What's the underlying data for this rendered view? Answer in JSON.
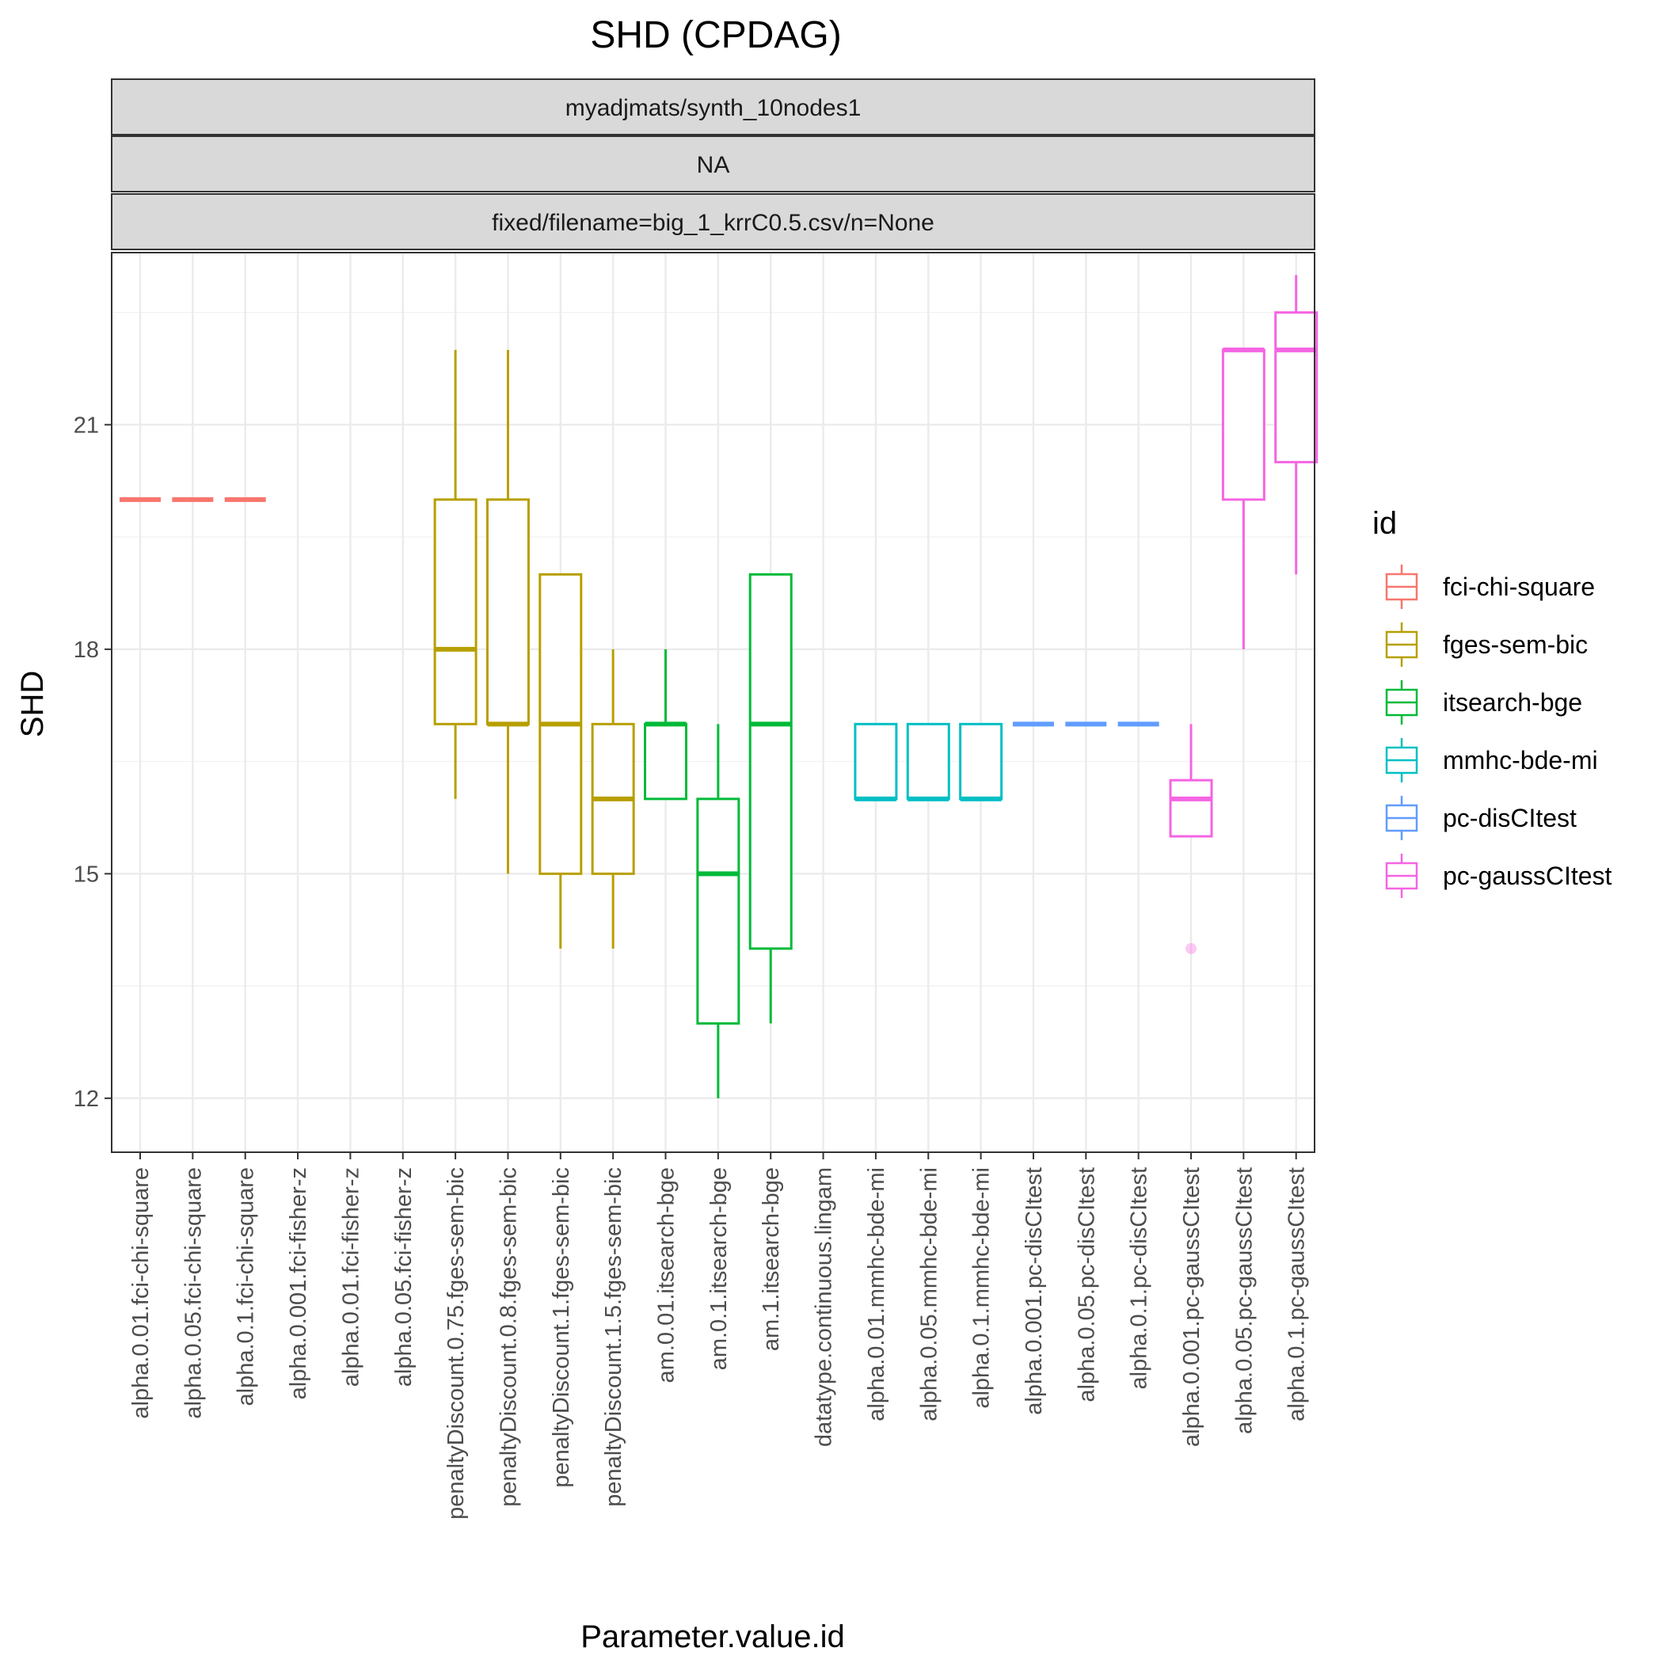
{
  "chart_data": {
    "type": "boxplot",
    "title": "SHD (CPDAG)",
    "strips": [
      "myadjmats/synth_10nodes1",
      "NA",
      "fixed/filename=big_1_krrC0.5.csv/n=None"
    ],
    "xlabel": "Parameter.value.id",
    "ylabel": "SHD",
    "ylim": [
      11.5,
      23.3
    ],
    "yticks": [
      12,
      15,
      18,
      21
    ],
    "grid": true,
    "legend_position": "right",
    "legend": {
      "title": "id",
      "entries": [
        {
          "name": "fci-chi-square",
          "color": "#F8766D"
        },
        {
          "name": "fges-sem-bic",
          "color": "#B79F00"
        },
        {
          "name": "itsearch-bge",
          "color": "#00BA38"
        },
        {
          "name": "mmhc-bde-mi",
          "color": "#00BFC4"
        },
        {
          "name": "pc-disCItest",
          "color": "#619CFF"
        },
        {
          "name": "pc-gaussCItest",
          "color": "#F564E3"
        }
      ]
    },
    "categories": [
      "alpha.0.01.fci-chi-square",
      "alpha.0.05.fci-chi-square",
      "alpha.0.1.fci-chi-square",
      "alpha.0.001.fci-fisher-z",
      "alpha.0.01.fci-fisher-z",
      "alpha.0.05.fci-fisher-z",
      "penaltyDiscount.0.75.fges-sem-bic",
      "penaltyDiscount.0.8.fges-sem-bic",
      "penaltyDiscount.1.fges-sem-bic",
      "penaltyDiscount.1.5.fges-sem-bic",
      "am.0.01.itsearch-bge",
      "am.0.1.itsearch-bge",
      "am.1.itsearch-bge",
      "datatype.continuous.lingam",
      "alpha.0.01.mmhc-bde-mi",
      "alpha.0.05.mmhc-bde-mi",
      "alpha.0.1.mmhc-bde-mi",
      "alpha.0.001.pc-disCItest",
      "alpha.0.05.pc-disCItest",
      "alpha.0.1.pc-disCItest",
      "alpha.0.001.pc-gaussCItest",
      "alpha.0.05.pc-gaussCItest",
      "alpha.0.1.pc-gaussCItest"
    ],
    "boxes": [
      {
        "index": 0,
        "group": "fci-chi-square",
        "min": 20,
        "q1": 20,
        "median": 20,
        "q3": 20,
        "max": 20,
        "outliers": []
      },
      {
        "index": 1,
        "group": "fci-chi-square",
        "min": 20,
        "q1": 20,
        "median": 20,
        "q3": 20,
        "max": 20,
        "outliers": []
      },
      {
        "index": 2,
        "group": "fci-chi-square",
        "min": 20,
        "q1": 20,
        "median": 20,
        "q3": 20,
        "max": 20,
        "outliers": []
      },
      {
        "index": 6,
        "group": "fges-sem-bic",
        "min": 16,
        "q1": 17,
        "median": 18,
        "q3": 20,
        "max": 22,
        "outliers": []
      },
      {
        "index": 7,
        "group": "fges-sem-bic",
        "min": 15,
        "q1": 17,
        "median": 17,
        "q3": 20,
        "max": 22,
        "outliers": []
      },
      {
        "index": 8,
        "group": "fges-sem-bic",
        "min": 14,
        "q1": 15,
        "median": 17,
        "q3": 19,
        "max": 19,
        "outliers": []
      },
      {
        "index": 9,
        "group": "fges-sem-bic",
        "min": 14,
        "q1": 15,
        "median": 16,
        "q3": 17,
        "max": 18,
        "outliers": []
      },
      {
        "index": 10,
        "group": "itsearch-bge",
        "min": 16,
        "q1": 16,
        "median": 17,
        "q3": 17,
        "max": 18,
        "outliers": []
      },
      {
        "index": 11,
        "group": "itsearch-bge",
        "min": 12,
        "q1": 13,
        "median": 15,
        "q3": 16,
        "max": 17,
        "outliers": []
      },
      {
        "index": 12,
        "group": "itsearch-bge",
        "min": 13,
        "q1": 14,
        "median": 17,
        "q3": 19,
        "max": 19,
        "outliers": []
      },
      {
        "index": 14,
        "group": "mmhc-bde-mi",
        "min": 16,
        "q1": 16,
        "median": 16,
        "q3": 17,
        "max": 17,
        "outliers": []
      },
      {
        "index": 15,
        "group": "mmhc-bde-mi",
        "min": 16,
        "q1": 16,
        "median": 16,
        "q3": 17,
        "max": 17,
        "outliers": []
      },
      {
        "index": 16,
        "group": "mmhc-bde-mi",
        "min": 16,
        "q1": 16,
        "median": 16,
        "q3": 17,
        "max": 17,
        "outliers": []
      },
      {
        "index": 17,
        "group": "pc-disCItest",
        "min": 17,
        "q1": 17,
        "median": 17,
        "q3": 17,
        "max": 17,
        "outliers": []
      },
      {
        "index": 18,
        "group": "pc-disCItest",
        "min": 17,
        "q1": 17,
        "median": 17,
        "q3": 17,
        "max": 17,
        "outliers": []
      },
      {
        "index": 19,
        "group": "pc-disCItest",
        "min": 17,
        "q1": 17,
        "median": 17,
        "q3": 17,
        "max": 17,
        "outliers": []
      },
      {
        "index": 20,
        "group": "pc-gaussCItest",
        "min": 15.5,
        "q1": 15.5,
        "median": 16,
        "q3": 16.25,
        "max": 17,
        "outliers": [
          14
        ]
      },
      {
        "index": 21,
        "group": "pc-gaussCItest",
        "min": 18,
        "q1": 20,
        "median": 22,
        "q3": 22,
        "max": 22,
        "outliers": []
      },
      {
        "index": 22,
        "group": "pc-gaussCItest",
        "min": 19,
        "q1": 20.5,
        "median": 22,
        "q3": 22.5,
        "max": 23,
        "outliers": []
      }
    ]
  }
}
